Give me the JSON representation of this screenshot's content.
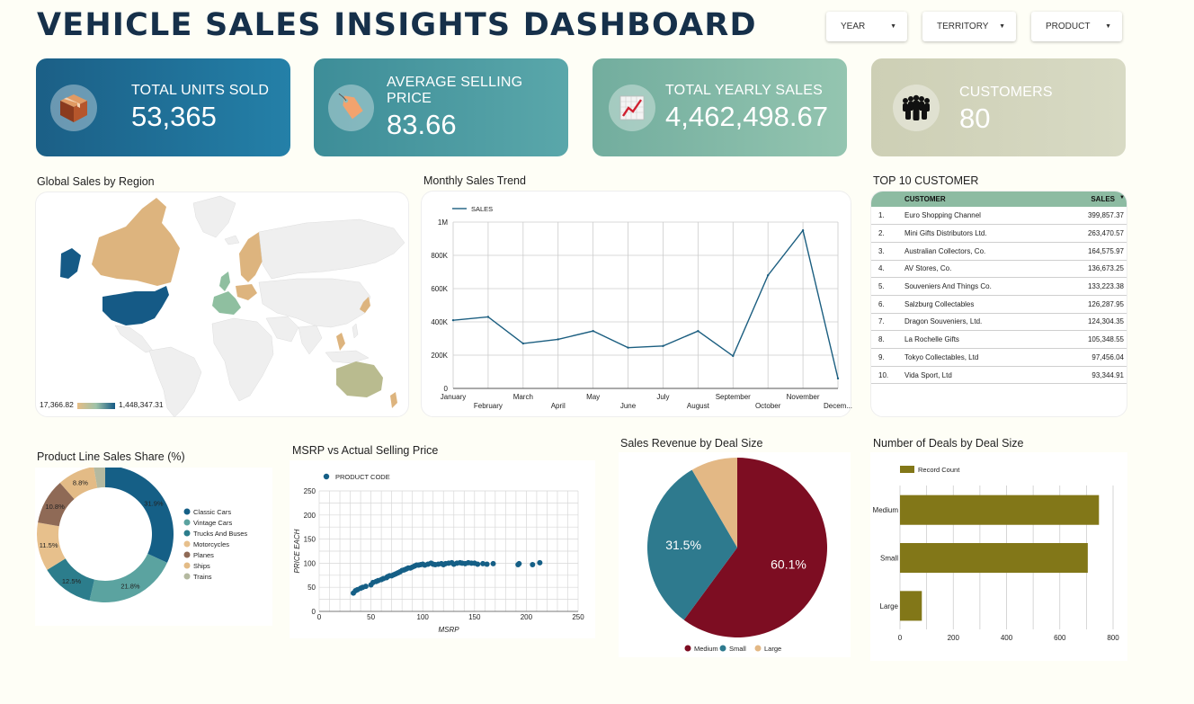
{
  "title": "VEHICLE SALES INSIGHTS DASHBOARD",
  "filters": [
    {
      "label": "YEAR"
    },
    {
      "label": "TERRITORY"
    },
    {
      "label": "PRODUCT"
    }
  ],
  "kpis": [
    {
      "label": "TOTAL UNITS SOLD",
      "value": "53,365",
      "icon": "package-box-icon",
      "color_from": "#1b5f86",
      "color_to": "#2480a8"
    },
    {
      "label": "AVERAGE SELLING PRICE",
      "value": "83.66",
      "icon": "price-tag-icon",
      "color_from": "#3d8d98",
      "color_to": "#5aa7aa"
    },
    {
      "label": "TOTAL YEARLY SALES",
      "value": "4,462,498.67",
      "icon": "trend-chart-icon",
      "color_from": "#72ad9e",
      "color_to": "#94c5b0"
    },
    {
      "label": "CUSTOMERS",
      "value": "80",
      "icon": "people-group-icon",
      "color_from": "#cdcfb5",
      "color_to": "#d8dac4"
    }
  ],
  "panels": {
    "map_title": "Global Sales by Region",
    "map_legend_min": "17,366.82",
    "map_legend_max": "1,448,347.31",
    "trend_title": "Monthly Sales Trend",
    "top_title": "TOP 10 CUSTOMER",
    "donut_title": "Product Line Sales Share (%)",
    "scatter_title": "MSRP vs Actual Selling Price",
    "pie_title": "Sales Revenue by Deal Size",
    "deals_title": "Number of Deals by Deal Size"
  },
  "top_customers": {
    "headers": [
      "CUSTOMER",
      "SALES"
    ],
    "rows": [
      {
        "rank": "1.",
        "name": "Euro Shopping Channel",
        "sales": "399,857.37"
      },
      {
        "rank": "2.",
        "name": "Mini Gifts Distributors Ltd.",
        "sales": "263,470.57"
      },
      {
        "rank": "3.",
        "name": "Australian Collectors, Co.",
        "sales": "164,575.97"
      },
      {
        "rank": "4.",
        "name": "AV Stores, Co.",
        "sales": "136,673.25"
      },
      {
        "rank": "5.",
        "name": "Souveniers And Things Co.",
        "sales": "133,223.38"
      },
      {
        "rank": "6.",
        "name": "Salzburg Collectables",
        "sales": "126,287.95"
      },
      {
        "rank": "7.",
        "name": "Dragon Souveniers, Ltd.",
        "sales": "124,304.35"
      },
      {
        "rank": "8.",
        "name": "La Rochelle Gifts",
        "sales": "105,348.55"
      },
      {
        "rank": "9.",
        "name": "Tokyo Collectables, Ltd",
        "sales": "97,456.04"
      },
      {
        "rank": "10.",
        "name": "Vida Sport, Ltd",
        "sales": "93,344.91"
      }
    ]
  },
  "chart_data": [
    {
      "id": "trend",
      "type": "line",
      "categories": [
        "January",
        "February",
        "March",
        "April",
        "May",
        "June",
        "July",
        "August",
        "September",
        "October",
        "November",
        "December"
      ],
      "category_labels": [
        "January",
        "February",
        "March",
        "April",
        "May",
        "June",
        "July",
        "August",
        "September",
        "October",
        "November",
        "Decem..."
      ],
      "series": [
        {
          "name": "SALES",
          "values": [
            410000,
            430000,
            270000,
            295000,
            345000,
            245000,
            255000,
            345000,
            195000,
            680000,
            950000,
            60000
          ],
          "color": "#1b5e80"
        }
      ],
      "yticks": [
        "0",
        "200K",
        "400K",
        "600K",
        "800K",
        "1M"
      ],
      "ylim": [
        0,
        1000000
      ],
      "grid": true,
      "legend": "top-left"
    },
    {
      "id": "donut",
      "type": "pie",
      "donut": true,
      "slices": [
        {
          "label": "Classic Cars",
          "value": 31.9,
          "text": "31.9%",
          "color": "#155f86"
        },
        {
          "label": "Vintage Cars",
          "value": 21.8,
          "text": "21.8%",
          "color": "#5ba3a0"
        },
        {
          "label": "Trucks And Buses",
          "value": 12.5,
          "text": "12.5%",
          "color": "#2c7d8c"
        },
        {
          "label": "Motorcycles",
          "value": 11.5,
          "text": "11.5%",
          "color": "#e7c08c"
        },
        {
          "label": "Planes",
          "value": 10.8,
          "text": "10.8%",
          "color": "#8f6a56"
        },
        {
          "label": "Ships",
          "value": 8.8,
          "text": "8.8%",
          "color": "#e3bb86"
        },
        {
          "label": "Trains",
          "value": 2.7,
          "text": "",
          "color": "#b4b9a0"
        }
      ],
      "legend": "right"
    },
    {
      "id": "scatter",
      "type": "scatter",
      "series": [
        {
          "name": "PRODUCT CODE",
          "color": "#155f86",
          "points": [
            [
              33,
              38
            ],
            [
              35,
              43
            ],
            [
              37,
              45
            ],
            [
              40,
              48
            ],
            [
              42,
              50
            ],
            [
              45,
              52
            ],
            [
              50,
              55
            ],
            [
              52,
              60
            ],
            [
              55,
              62
            ],
            [
              57,
              64
            ],
            [
              60,
              66
            ],
            [
              62,
              68
            ],
            [
              65,
              70
            ],
            [
              66,
              72
            ],
            [
              68,
              74
            ],
            [
              70,
              74
            ],
            [
              72,
              76
            ],
            [
              74,
              78
            ],
            [
              76,
              80
            ],
            [
              78,
              82
            ],
            [
              80,
              85
            ],
            [
              82,
              86
            ],
            [
              84,
              88
            ],
            [
              86,
              90
            ],
            [
              88,
              90
            ],
            [
              90,
              92
            ],
            [
              92,
              94
            ],
            [
              94,
              96
            ],
            [
              96,
              96
            ],
            [
              98,
              97
            ],
            [
              100,
              98
            ],
            [
              102,
              96
            ],
            [
              105,
              98
            ],
            [
              108,
              100
            ],
            [
              110,
              98
            ],
            [
              112,
              97
            ],
            [
              115,
              98
            ],
            [
              118,
              99
            ],
            [
              120,
              97
            ],
            [
              122,
              99
            ],
            [
              125,
              100
            ],
            [
              128,
              101
            ],
            [
              130,
              98
            ],
            [
              133,
              100
            ],
            [
              136,
              101
            ],
            [
              138,
              100
            ],
            [
              141,
              99
            ],
            [
              144,
              101
            ],
            [
              147,
              100
            ],
            [
              150,
              100
            ],
            [
              153,
              98
            ],
            [
              158,
              99
            ],
            [
              162,
              98
            ],
            [
              168,
              99
            ],
            [
              192,
              97
            ],
            [
              193,
              99
            ],
            [
              206,
              97
            ],
            [
              213,
              101
            ]
          ]
        }
      ],
      "xlabel": "MSRP",
      "ylabel": "PRICE EACH",
      "xlim": [
        0,
        250
      ],
      "ylim": [
        0,
        250
      ],
      "xticks": [
        "0",
        "50",
        "100",
        "150",
        "200",
        "250"
      ],
      "yticks": [
        "0",
        "50",
        "100",
        "150",
        "200",
        "250"
      ],
      "grid": true,
      "legend": "top-left"
    },
    {
      "id": "deal_pie",
      "type": "pie",
      "slices": [
        {
          "label": "Medium",
          "value": 60.1,
          "text": "60.1%",
          "color": "#7d0d22"
        },
        {
          "label": "Small",
          "value": 31.5,
          "text": "31.5%",
          "color": "#2e7a8e"
        },
        {
          "label": "Large",
          "value": 8.4,
          "text": "",
          "color": "#e3b885"
        }
      ],
      "legend": "bottom"
    },
    {
      "id": "deal_bars",
      "type": "bar",
      "orientation": "horizontal",
      "categories": [
        "Medium",
        "Small",
        "Large"
      ],
      "series": [
        {
          "name": "Record Count",
          "values": [
            747,
            705,
            82
          ],
          "color": "#827718"
        }
      ],
      "xlim": [
        0,
        800
      ],
      "xticks": [
        "0",
        "200",
        "400",
        "600",
        "800"
      ],
      "grid": true,
      "legend": "top-left"
    }
  ]
}
